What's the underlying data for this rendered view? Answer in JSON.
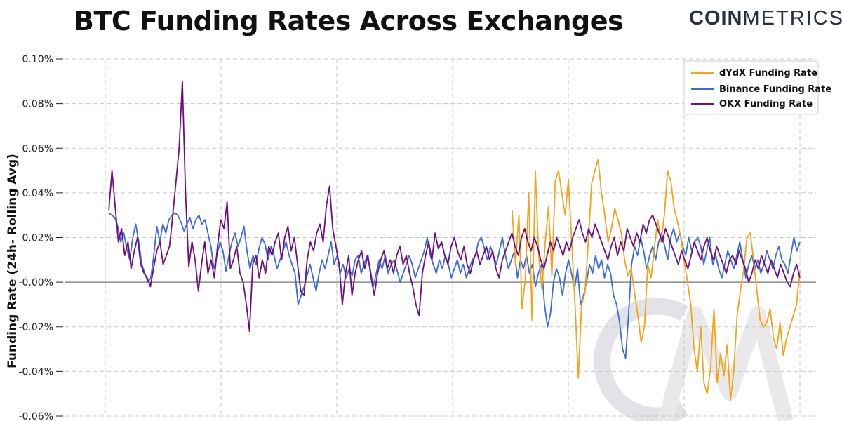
{
  "title": "BTC Funding Rates Across Exchanges",
  "brand": {
    "part1": "COIN",
    "part2": "METRICS"
  },
  "chart_data": {
    "type": "line",
    "ylabel": "Funding Rate (24h- Rolling Avg)",
    "ylim": [
      -0.06,
      0.1
    ],
    "yticks": [
      -0.06,
      -0.04,
      -0.02,
      0.0,
      0.02,
      0.04,
      0.06,
      0.08,
      0.1
    ],
    "ytick_labels": [
      "-0.06%",
      "-0.04%",
      "-0.02%",
      "-0.00%",
      "0.02%",
      "0.04%",
      "0.06%",
      "0.08%",
      "0.10%"
    ],
    "x_gridlines": 7,
    "grid": true,
    "legend_position": "top-right",
    "series": [
      {
        "name": "dYdX Funding Rate",
        "color": "#F5A31A",
        "values": [
          null,
          null,
          null,
          null,
          null,
          null,
          null,
          null,
          null,
          null,
          null,
          null,
          null,
          null,
          null,
          null,
          null,
          null,
          null,
          null,
          null,
          null,
          null,
          null,
          null,
          null,
          null,
          null,
          null,
          null,
          null,
          null,
          null,
          null,
          null,
          null,
          null,
          null,
          null,
          null,
          null,
          null,
          null,
          null,
          null,
          null,
          null,
          null,
          null,
          null,
          null,
          null,
          null,
          null,
          null,
          null,
          null,
          null,
          null,
          null,
          null,
          null,
          null,
          null,
          null,
          null,
          null,
          null,
          null,
          null,
          null,
          null,
          null,
          null,
          null,
          null,
          null,
          null,
          null,
          null,
          null,
          null,
          null,
          null,
          null,
          null,
          null,
          null,
          null,
          null,
          null,
          null,
          null,
          null,
          null,
          null,
          null,
          null,
          null,
          null,
          null,
          null,
          null,
          null,
          null,
          null,
          null,
          null,
          null,
          null,
          null,
          null,
          null,
          null,
          null,
          null,
          null,
          null,
          null,
          null,
          null,
          null,
          0.032,
          0.008,
          0.03,
          -0.012,
          0.002,
          0.04,
          -0.017,
          0.05,
          0.012,
          -0.003,
          0.018,
          0.034,
          0.003,
          0.045,
          0.05,
          0.04,
          0.03,
          0.046,
          0.018,
          -0.01,
          -0.043,
          -0.01,
          -0.005,
          0.018,
          0.044,
          0.05,
          0.055,
          0.04,
          0.03,
          0.018,
          0.024,
          0.033,
          0.028,
          0.022,
          0.01,
          0.003,
          0.006,
          -0.005,
          -0.015,
          -0.027,
          -0.02,
          0.008,
          0.002,
          0.015,
          0.028,
          0.018,
          0.03,
          0.05,
          0.045,
          0.033,
          0.027,
          0.02,
          0.01,
          0.0,
          -0.01,
          -0.03,
          -0.04,
          -0.02,
          -0.045,
          -0.05,
          -0.038,
          -0.012,
          -0.045,
          -0.032,
          -0.042,
          -0.028,
          -0.053,
          -0.04,
          -0.015,
          -0.004,
          0.006,
          0.02,
          0.022,
          0.01,
          -0.004,
          -0.017,
          -0.02,
          -0.018,
          -0.012,
          -0.025,
          -0.03,
          -0.018,
          -0.033,
          -0.025,
          -0.02,
          -0.015,
          -0.01,
          0.005
        ]
      },
      {
        "name": "Binance Funding Rate",
        "color": "#3A6CD8",
        "values": [
          0.031,
          0.03,
          0.029,
          0.025,
          0.018,
          0.022,
          0.015,
          0.01,
          0.02,
          0.026,
          0.018,
          0.008,
          0.004,
          0.0,
          0.002,
          0.012,
          0.025,
          0.018,
          0.026,
          0.022,
          0.028,
          0.03,
          0.031,
          0.03,
          0.027,
          0.023,
          0.026,
          0.029,
          0.024,
          0.028,
          0.03,
          0.026,
          0.028,
          0.022,
          0.016,
          0.006,
          0.012,
          0.018,
          0.014,
          0.005,
          0.012,
          0.018,
          0.022,
          0.016,
          0.02,
          0.025,
          0.014,
          0.006,
          0.012,
          0.008,
          0.015,
          0.02,
          0.017,
          0.01,
          0.016,
          0.012,
          0.006,
          0.01,
          0.014,
          0.018,
          0.012,
          0.008,
          0.004,
          -0.01,
          -0.006,
          -0.002,
          0.003,
          0.008,
          0.002,
          -0.004,
          0.004,
          0.01,
          0.006,
          0.012,
          0.018,
          0.008,
          0.012,
          0.004,
          0.008,
          0.002,
          0.006,
          0.003,
          0.01,
          0.012,
          0.004,
          0.008,
          0.012,
          0.006,
          -0.002,
          0.004,
          0.01,
          0.006,
          0.012,
          0.004,
          0.008,
          0.01,
          0.005,
          0.0,
          0.004,
          0.008,
          0.012,
          0.008,
          0.002,
          0.006,
          0.01,
          0.014,
          0.02,
          0.012,
          0.008,
          0.004,
          0.01,
          0.006,
          0.012,
          0.008,
          0.002,
          0.006,
          0.01,
          0.004,
          0.008,
          0.002,
          0.006,
          0.01,
          0.012,
          0.018,
          0.02,
          0.015,
          0.01,
          0.016,
          0.012,
          0.008,
          0.014,
          0.02,
          0.012,
          0.006,
          0.01,
          0.014,
          0.002,
          0.01,
          0.006,
          0.012,
          0.004,
          0.008,
          -0.002,
          0.004,
          0.008,
          -0.01,
          -0.02,
          -0.014,
          0.0,
          0.006,
          0.002,
          -0.006,
          0.004,
          0.01,
          0.004,
          -0.003,
          0.006,
          -0.01,
          -0.006,
          0.0,
          0.008,
          0.004,
          0.012,
          0.006,
          0.01,
          0.002,
          0.008,
          0.004,
          -0.006,
          -0.01,
          -0.018,
          -0.03,
          -0.034,
          -0.014,
          0.008,
          0.016,
          0.012,
          0.02,
          0.014,
          0.006,
          0.012,
          0.016,
          0.01,
          0.018,
          0.022,
          0.016,
          0.01,
          0.02,
          0.024,
          0.018,
          0.022,
          0.016,
          0.012,
          0.02,
          0.014,
          0.018,
          0.02,
          0.016,
          0.008,
          0.014,
          0.02,
          0.008,
          0.012,
          0.006,
          0.002,
          0.008,
          0.014,
          0.01,
          0.006,
          0.012,
          0.018,
          0.01,
          0.002,
          0.008,
          0.012,
          0.006,
          0.01,
          0.004,
          0.008,
          0.014,
          0.01,
          0.006,
          0.012,
          0.016,
          0.01,
          0.008,
          0.004,
          0.012,
          0.02,
          0.014,
          0.018
        ]
      },
      {
        "name": "OKX Funding Rate",
        "color": "#6D0F7E",
        "values": [
          0.032,
          0.05,
          0.034,
          0.018,
          0.024,
          0.012,
          0.018,
          0.006,
          0.014,
          0.02,
          0.008,
          0.004,
          0.002,
          -0.002,
          0.006,
          0.014,
          0.018,
          0.008,
          0.012,
          0.016,
          0.03,
          0.045,
          0.06,
          0.09,
          0.04,
          0.007,
          0.018,
          0.01,
          -0.004,
          0.008,
          0.018,
          0.004,
          0.01,
          0.002,
          0.016,
          0.028,
          0.024,
          0.036,
          0.006,
          0.01,
          0.016,
          0.004,
          0.0,
          -0.01,
          -0.022,
          0.008,
          0.012,
          0.002,
          0.01,
          0.004,
          0.016,
          0.012,
          0.018,
          0.022,
          0.01,
          0.02,
          0.025,
          0.014,
          0.02,
          0.008,
          -0.004,
          -0.006,
          0.01,
          0.018,
          0.014,
          0.022,
          0.026,
          0.018,
          0.034,
          0.043,
          0.024,
          0.016,
          0.008,
          -0.01,
          0.004,
          0.012,
          -0.006,
          0.004,
          0.01,
          0.014,
          0.006,
          0.012,
          0.002,
          -0.006,
          0.004,
          0.01,
          0.014,
          0.006,
          0.01,
          0.004,
          0.012,
          0.016,
          0.008,
          0.012,
          0.004,
          -0.002,
          -0.01,
          -0.015,
          0.004,
          0.012,
          0.018,
          0.01,
          0.022,
          0.015,
          0.018,
          0.012,
          0.008,
          0.016,
          0.02,
          0.014,
          0.01,
          0.016,
          0.008,
          0.004,
          0.01,
          0.014,
          0.008,
          0.012,
          0.016,
          0.01,
          0.014,
          0.006,
          0.002,
          0.01,
          0.014,
          0.018,
          0.022,
          0.016,
          0.012,
          0.02,
          0.024,
          0.018,
          0.014,
          0.02,
          0.016,
          0.01,
          0.006,
          0.012,
          0.018,
          0.014,
          0.02,
          0.016,
          0.012,
          0.018,
          0.014,
          0.02,
          0.024,
          0.028,
          0.022,
          0.018,
          0.024,
          0.02,
          0.026,
          0.022,
          0.018,
          0.014,
          0.01,
          0.016,
          0.02,
          0.012,
          0.018,
          0.014,
          0.024,
          0.02,
          0.016,
          0.022,
          0.018,
          0.026,
          0.022,
          0.028,
          0.03,
          0.026,
          0.022,
          0.018,
          0.024,
          0.02,
          0.016,
          0.012,
          0.008,
          0.014,
          0.01,
          0.006,
          0.012,
          0.018,
          0.014,
          0.01,
          0.016,
          0.02,
          0.014,
          0.01,
          0.016,
          0.012,
          0.008,
          0.004,
          0.01,
          0.012,
          0.008,
          0.014,
          0.01,
          0.006,
          0.0,
          0.004,
          0.01,
          0.006,
          0.012,
          0.008,
          0.004,
          0.01,
          0.006,
          0.002,
          0.008,
          0.004,
          0.0,
          -0.002,
          0.004,
          0.008,
          0.002
        ]
      }
    ]
  }
}
